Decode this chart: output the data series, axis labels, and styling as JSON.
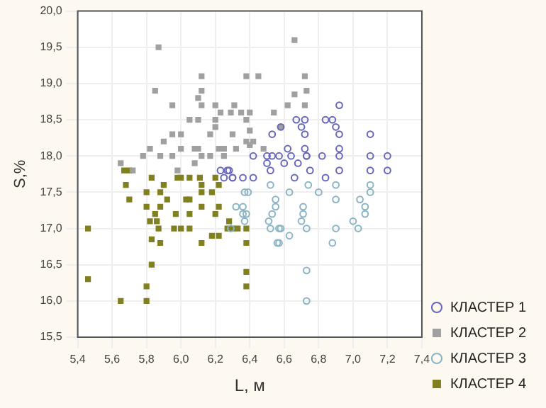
{
  "chart_data": {
    "type": "scatter",
    "xlabel": "L, м",
    "ylabel": "S,%",
    "xlim": [
      5.4,
      7.4
    ],
    "ylim": [
      15.5,
      20.0
    ],
    "xticks": [
      {
        "value": 5.4,
        "label": "5,4"
      },
      {
        "value": 5.6,
        "label": "5,6"
      },
      {
        "value": 5.8,
        "label": "5,8"
      },
      {
        "value": 6.0,
        "label": "6,0"
      },
      {
        "value": 6.2,
        "label": "6,2"
      },
      {
        "value": 6.4,
        "label": "6,4"
      },
      {
        "value": 6.6,
        "label": "6,6"
      },
      {
        "value": 6.8,
        "label": "6,8"
      },
      {
        "value": 7.0,
        "label": "7,0"
      },
      {
        "value": 7.2,
        "label": "7,2"
      },
      {
        "value": 7.4,
        "label": "7,4"
      }
    ],
    "yticks": [
      {
        "value": 15.5,
        "label": "15,5"
      },
      {
        "value": 16.0,
        "label": "16,0"
      },
      {
        "value": 16.5,
        "label": "16,5"
      },
      {
        "value": 17.0,
        "label": "17,0"
      },
      {
        "value": 17.5,
        "label": "17,5"
      },
      {
        "value": 18.0,
        "label": "18,0"
      },
      {
        "value": 18.5,
        "label": "18,5"
      },
      {
        "value": 19.0,
        "label": "19,0"
      },
      {
        "value": 19.5,
        "label": "19,5"
      },
      {
        "value": 20.0,
        "label": "20,0"
      }
    ],
    "grid": true,
    "legend": "bottom right",
    "series": [
      {
        "name": "КЛАСТЕР 1",
        "color": "#6666bb",
        "marker": "circle",
        "x": [
          6.92,
          6.67,
          6.72,
          6.84,
          6.88,
          6.58,
          6.7,
          6.9,
          6.53,
          6.72,
          6.92,
          7.1,
          6.62,
          6.72,
          6.92,
          6.53,
          6.73,
          7.1,
          6.42,
          6.5,
          6.57,
          6.64,
          6.73,
          6.82,
          6.92,
          7.2,
          6.5,
          6.6,
          6.68,
          6.28,
          6.52,
          6.75,
          6.92,
          7.1,
          7.2,
          6.3,
          6.42,
          6.66,
          6.84,
          6.23,
          6.27,
          6.25,
          6.3,
          6.36
        ],
        "values": [
          18.7,
          18.5,
          18.5,
          18.5,
          18.5,
          18.4,
          18.4,
          18.4,
          18.3,
          18.3,
          18.3,
          18.3,
          18.1,
          18.1,
          18.1,
          18.0,
          18.0,
          18.0,
          18.0,
          18.0,
          18.0,
          18.0,
          18.0,
          18.0,
          18.0,
          18.0,
          17.9,
          17.9,
          17.9,
          17.8,
          17.8,
          17.8,
          17.8,
          17.8,
          17.8,
          17.7,
          17.7,
          17.7,
          17.7,
          17.8,
          17.8,
          17.7,
          17.7,
          17.7
        ]
      },
      {
        "name": "КЛАСТЕР 2",
        "color": "#a0a0a0",
        "marker": "square",
        "x": [
          5.87,
          5.85,
          6.12,
          6.12,
          6.1,
          6.12,
          6.2,
          5.95,
          6.23,
          6.35,
          6.38,
          6.4,
          6.45,
          6.05,
          6.1,
          6.17,
          6.2,
          6.2,
          6.3,
          6.0,
          5.95,
          5.9,
          5.82,
          5.88,
          5.78,
          5.95,
          6.0,
          6.08,
          6.1,
          6.12,
          6.17,
          6.22,
          6.25,
          6.25,
          6.32,
          6.38,
          6.4,
          6.42,
          6.48,
          5.72,
          5.65,
          5.98,
          6.08,
          6.66,
          6.38,
          6.72,
          6.73,
          6.66,
          6.31,
          6.29,
          6.54,
          6.62,
          6.72,
          6.58,
          6.4
        ],
        "values": [
          19.5,
          18.9,
          19.1,
          18.9,
          18.8,
          18.7,
          18.7,
          18.7,
          18.6,
          18.6,
          18.5,
          18.6,
          19.1,
          18.5,
          18.5,
          18.3,
          18.4,
          18.5,
          18.3,
          18.3,
          18.3,
          18.2,
          18.1,
          18.0,
          18.0,
          18.0,
          18.1,
          18.1,
          18.1,
          18.0,
          18.0,
          18.1,
          18.1,
          18.0,
          18.1,
          18.2,
          18.35,
          18.2,
          18.1,
          17.8,
          17.9,
          17.8,
          17.9,
          19.6,
          19.1,
          19.1,
          18.9,
          18.85,
          18.7,
          18.6,
          18.6,
          18.7,
          18.7,
          18.4,
          18.15
        ]
      },
      {
        "name": "КЛАСТЕР 3",
        "color": "#8ab4c4",
        "marker": "circle",
        "x": [
          6.73,
          6.73,
          6.56,
          6.88,
          6.63,
          6.29,
          6.52,
          6.57,
          6.73,
          6.9,
          7.03,
          6.37,
          6.51,
          6.7,
          7.0,
          6.36,
          6.53,
          6.71,
          7.07,
          6.32,
          6.55,
          6.71,
          7.07,
          6.55,
          6.9,
          7.04,
          6.37,
          6.63,
          6.8,
          7.1,
          6.52,
          6.74,
          6.9,
          7.1,
          6.39,
          6.36,
          6.38,
          6.58,
          6.57
        ],
        "values": [
          16.0,
          16.42,
          16.8,
          16.8,
          16.9,
          17.0,
          17.0,
          17.0,
          17.0,
          17.0,
          17.0,
          17.1,
          17.1,
          17.1,
          17.1,
          17.2,
          17.2,
          17.2,
          17.2,
          17.3,
          17.3,
          17.3,
          17.3,
          17.4,
          17.4,
          17.4,
          17.5,
          17.5,
          17.5,
          17.5,
          17.6,
          17.6,
          17.6,
          17.6,
          17.5,
          17.3,
          17.2,
          17.0,
          16.8
        ]
      },
      {
        "name": "КЛАСТЕР 4",
        "color": "#808020",
        "marker": "square",
        "x": [
          5.46,
          5.46,
          5.65,
          5.8,
          5.8,
          5.83,
          5.83,
          5.82,
          5.7,
          5.68,
          5.67,
          5.8,
          5.8,
          5.83,
          5.85,
          5.87,
          5.88,
          5.88,
          5.9,
          5.92,
          5.88,
          5.86,
          5.97,
          5.98,
          5.96,
          6.0,
          6.03,
          6.05,
          6.05,
          6.05,
          6.05,
          6.12,
          6.12,
          6.12,
          6.12,
          6.18,
          6.18,
          6.2,
          6.22,
          6.22,
          6.22,
          6.27,
          6.28,
          6.3,
          6.33,
          6.38,
          6.38,
          6.38,
          6.38,
          5.7,
          6.0,
          6.11,
          6.2
        ],
        "values": [
          17.0,
          16.3,
          16.0,
          16.0,
          16.2,
          16.5,
          16.85,
          17.1,
          17.4,
          17.6,
          17.8,
          17.5,
          17.3,
          17.7,
          17.2,
          17.0,
          16.8,
          17.5,
          17.6,
          17.4,
          17.3,
          17.1,
          17.2,
          17.7,
          17.0,
          17.0,
          17.4,
          17.4,
          17.7,
          17.2,
          17.0,
          17.5,
          17.3,
          16.8,
          17.6,
          17.5,
          16.9,
          17.2,
          17.3,
          17.6,
          16.9,
          17.0,
          17.1,
          17.0,
          17.0,
          17.0,
          16.8,
          16.4,
          16.2,
          17.8,
          17.7,
          17.7,
          17.7
        ]
      }
    ]
  }
}
